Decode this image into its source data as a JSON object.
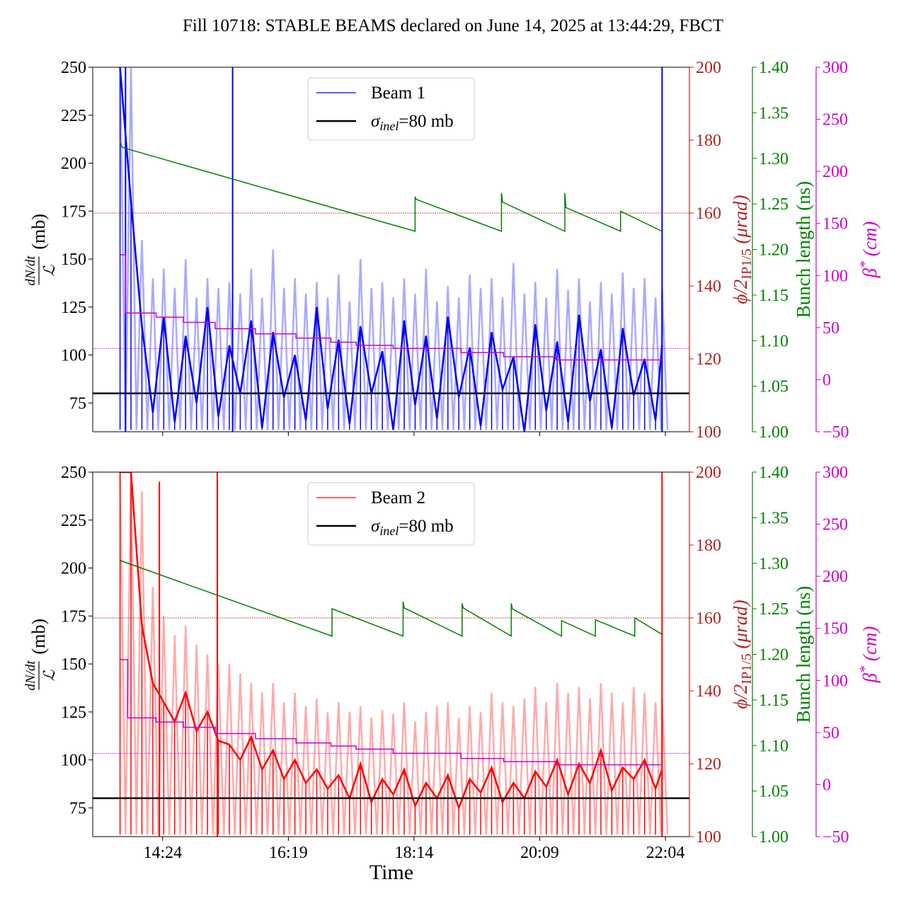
{
  "title": "Fill 10718: STABLE BEAMS declared on June 14, 2025 at 13:44:29, FBCT",
  "xlabel": "Time",
  "sample_times": [
    "13:45",
    "13:55",
    "14:05",
    "14:15",
    "14:25",
    "14:35",
    "14:45",
    "14:55",
    "15:05",
    "15:15",
    "15:25",
    "15:35",
    "15:45",
    "15:55",
    "16:05",
    "16:15",
    "16:25",
    "16:35",
    "16:45",
    "16:55",
    "17:05",
    "17:15",
    "17:25",
    "17:35",
    "17:45",
    "17:55",
    "18:05",
    "18:15",
    "18:25",
    "18:35",
    "18:45",
    "18:55",
    "19:05",
    "19:15",
    "19:25",
    "19:35",
    "19:45",
    "19:55",
    "20:05",
    "20:15",
    "20:25",
    "20:35",
    "20:45",
    "20:55",
    "21:05",
    "21:15",
    "21:25",
    "21:35",
    "21:45",
    "21:55",
    "22:01"
  ],
  "chart_data": [
    {
      "type": "line",
      "xlim": [
        "13:20",
        "22:26"
      ],
      "xticks": [
        "14:24",
        "16:19",
        "18:14",
        "20:09",
        "22:04"
      ],
      "show_xtick_labels": false,
      "ylabel_num": "dN/dt",
      "ylabel_den": "ℒ",
      "ylabel_unit": "(mb)",
      "ylim": [
        60,
        250
      ],
      "yticks": [
        "75",
        "100",
        "125",
        "150",
        "175",
        "200",
        "225",
        "250"
      ],
      "crossing_axis": {
        "label_main": "ϕ/2",
        "label_sub": "IP1/5",
        "label_unit": " (μrad)",
        "ylim": [
          100,
          200
        ],
        "ticks": [
          "100",
          "120",
          "140",
          "160",
          "180",
          "200"
        ],
        "reference": 160,
        "color": "#b22222"
      },
      "bunch_axis": {
        "label": "Bunch length (ns)",
        "ylim": [
          1.0,
          1.4
        ],
        "ticks": [
          "1.00",
          "1.05",
          "1.10",
          "1.15",
          "1.20",
          "1.25",
          "1.30",
          "1.35",
          "1.40"
        ],
        "color": "#008000"
      },
      "beta_axis": {
        "label_main": "β",
        "label_sup": "*",
        "label_unit": " (cm)",
        "ylim": [
          -50,
          300
        ],
        "ticks": [
          "−50",
          "0",
          "50",
          "100",
          "150",
          "200",
          "250",
          "300"
        ],
        "reference": 30,
        "color": "#cc00cc"
      },
      "legend": {
        "placement": "upper center",
        "beam": "Beam 1",
        "ref_symbol": "σ",
        "ref_sub": "inel",
        "ref_rest": "=80 mb"
      },
      "sigma_inel": 80,
      "series": [
        {
          "name": "Beam 1",
          "color": "#0000ff",
          "envelope_color": "#aaaaff",
          "values": [
            250,
            180,
            115,
            70,
            120,
            65,
            110,
            75,
            125,
            68,
            105,
            80,
            118,
            62,
            112,
            78,
            100,
            66,
            125,
            72,
            108,
            64,
            115,
            80,
            102,
            61,
            118,
            74,
            110,
            67,
            120,
            78,
            104,
            63,
            112,
            82,
            99,
            60,
            116,
            71,
            107,
            65,
            121,
            76,
            103,
            62,
            114,
            79,
            98,
            66,
            105
          ],
          "envelope": [
            250,
            250,
            160,
            140,
            145,
            135,
            150,
            130,
            140,
            135,
            138,
            132,
            145,
            130,
            155,
            135,
            140,
            132,
            138,
            130,
            142,
            128,
            150,
            135,
            138,
            130,
            140,
            132,
            145,
            128,
            136,
            130,
            142,
            135,
            140,
            130,
            148,
            132,
            138,
            130,
            145,
            134,
            140,
            128,
            138,
            132,
            143,
            135,
            140,
            130,
            135
          ],
          "spikes": [
            {
              "time": "13:50",
              "value": 250
            },
            {
              "time": "15:28",
              "value": 250
            },
            {
              "time": "22:01",
              "value": 250
            }
          ]
        }
      ],
      "bunch_length": [
        [
          "13:45",
          1.318
        ],
        [
          "13:47",
          1.312
        ],
        [
          "18:15",
          1.22
        ],
        [
          "18:15",
          1.258
        ],
        [
          "18:16",
          1.255
        ],
        [
          "19:34",
          1.22
        ],
        [
          "19:34",
          1.262
        ],
        [
          "19:35",
          1.252
        ],
        [
          "20:32",
          1.22
        ],
        [
          "20:32",
          1.262
        ],
        [
          "20:33",
          1.246
        ],
        [
          "21:23",
          1.22
        ],
        [
          "21:23",
          1.242
        ],
        [
          "22:01",
          1.22
        ]
      ],
      "beta_star": [
        [
          "13:45",
          120
        ],
        [
          "13:50",
          64
        ],
        [
          "14:18",
          60
        ],
        [
          "14:43",
          55
        ],
        [
          "15:12",
          49
        ],
        [
          "15:49",
          44
        ],
        [
          "16:26",
          40
        ],
        [
          "16:58",
          36
        ],
        [
          "17:21",
          33
        ],
        [
          "17:55",
          30
        ],
        [
          "18:57",
          26
        ],
        [
          "19:36",
          22
        ],
        [
          "20:24",
          19
        ]
      ]
    },
    {
      "type": "line",
      "xlim": [
        "13:20",
        "22:26"
      ],
      "xticks": [
        "14:24",
        "16:19",
        "18:14",
        "20:09",
        "22:04"
      ],
      "show_xtick_labels": true,
      "ylabel_num": "dN/dt",
      "ylabel_den": "ℒ",
      "ylabel_unit": "(mb)",
      "ylim": [
        60,
        250
      ],
      "yticks": [
        "75",
        "100",
        "125",
        "150",
        "175",
        "200",
        "225",
        "250"
      ],
      "crossing_axis": {
        "label_main": "ϕ/2",
        "label_sub": "IP1/5",
        "label_unit": " (μrad)",
        "ylim": [
          100,
          200
        ],
        "ticks": [
          "100",
          "120",
          "140",
          "160",
          "180",
          "200"
        ],
        "reference": 160,
        "color": "#b22222"
      },
      "bunch_axis": {
        "label": "Bunch length (ns)",
        "ylim": [
          1.0,
          1.4
        ],
        "ticks": [
          "1.00",
          "1.05",
          "1.10",
          "1.15",
          "1.20",
          "1.25",
          "1.30",
          "1.35",
          "1.40"
        ],
        "color": "#008000"
      },
      "beta_axis": {
        "label_main": "β",
        "label_sup": "*",
        "label_unit": " (cm)",
        "ylim": [
          -50,
          300
        ],
        "ticks": [
          "−50",
          "0",
          "50",
          "100",
          "150",
          "200",
          "250",
          "300"
        ],
        "reference": 30,
        "color": "#cc00cc"
      },
      "legend": {
        "placement": "upper center",
        "beam": "Beam 2",
        "ref_symbol": "σ",
        "ref_sub": "inel",
        "ref_rest": "=80 mb"
      },
      "sigma_inel": 80,
      "series": [
        {
          "name": "Beam 2",
          "color": "#ff0000",
          "envelope_color": "#ffaaaa",
          "values": [
            250,
            250,
            170,
            140,
            130,
            120,
            135,
            115,
            125,
            110,
            108,
            100,
            112,
            95,
            105,
            90,
            100,
            88,
            95,
            85,
            92,
            80,
            98,
            78,
            90,
            82,
            95,
            76,
            88,
            80,
            92,
            75,
            90,
            83,
            96,
            78,
            88,
            80,
            94,
            86,
            100,
            82,
            98,
            88,
            105,
            84,
            96,
            90,
            100,
            85,
            95
          ],
          "envelope": [
            250,
            250,
            240,
            190,
            175,
            165,
            170,
            160,
            155,
            150,
            150,
            145,
            140,
            135,
            140,
            130,
            135,
            128,
            132,
            125,
            130,
            125,
            128,
            122,
            126,
            124,
            130,
            120,
            125,
            128,
            130,
            122,
            128,
            125,
            135,
            130,
            128,
            132,
            138,
            130,
            140,
            135,
            138,
            132,
            140,
            135,
            130,
            138,
            135,
            130,
            132
          ],
          "spikes": [
            {
              "time": "14:21",
              "value": 245
            },
            {
              "time": "15:14",
              "value": 250
            },
            {
              "time": "22:01",
              "value": 250
            }
          ]
        }
      ],
      "bunch_length": [
        [
          "13:45",
          1.303
        ],
        [
          "16:59",
          1.22
        ],
        [
          "16:59",
          1.25
        ],
        [
          "18:04",
          1.22
        ],
        [
          "18:04",
          1.258
        ],
        [
          "18:05",
          1.251
        ],
        [
          "18:58",
          1.22
        ],
        [
          "18:58",
          1.256
        ],
        [
          "18:59",
          1.251
        ],
        [
          "19:43",
          1.22
        ],
        [
          "19:43",
          1.256
        ],
        [
          "19:44",
          1.25
        ],
        [
          "20:29",
          1.22
        ],
        [
          "20:29",
          1.237
        ],
        [
          "21:00",
          1.22
        ],
        [
          "21:00",
          1.238
        ],
        [
          "21:36",
          1.22
        ],
        [
          "21:36",
          1.24
        ],
        [
          "22:01",
          1.222
        ]
      ],
      "beta_star": [
        [
          "13:45",
          120
        ],
        [
          "13:52",
          64
        ],
        [
          "14:18",
          60
        ],
        [
          "14:43",
          55
        ],
        [
          "15:12",
          49
        ],
        [
          "15:49",
          44
        ],
        [
          "16:26",
          40
        ],
        [
          "16:58",
          37
        ],
        [
          "17:21",
          34
        ],
        [
          "17:55",
          30
        ],
        [
          "18:57",
          25
        ],
        [
          "19:36",
          22
        ],
        [
          "20:24",
          19
        ]
      ]
    }
  ]
}
